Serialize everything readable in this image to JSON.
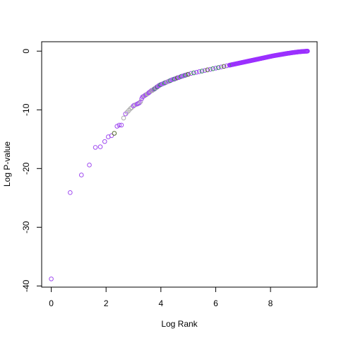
{
  "chart_data": {
    "type": "scatter",
    "title": "",
    "xlabel": "Log Rank",
    "ylabel": "Log P-value",
    "xlim": [
      -0.35,
      9.7
    ],
    "ylim": [
      -40.2,
      1.6
    ],
    "xticks": [
      0,
      2,
      4,
      6,
      8
    ],
    "yticks": [
      0,
      -10,
      -20,
      -30,
      -40
    ],
    "xtick_labels": [
      "0",
      "2",
      "4",
      "6",
      "8"
    ],
    "ytick_labels": [
      "0",
      "-10",
      "-20",
      "-30",
      "-40"
    ],
    "grid": false,
    "legend": "none",
    "marker": "open-circle",
    "colors": {
      "purple": "#a04cf0",
      "violet": "#9b30ff",
      "green": "#2e8b57",
      "darkgreen": "#556b2f",
      "grey": "#aaaaaa",
      "axis": "#000000",
      "background": "#ffffff"
    },
    "points": [
      {
        "x": 0.0,
        "y": -38.8,
        "c": "purple"
      },
      {
        "x": 0.69,
        "y": -24.1,
        "c": "purple"
      },
      {
        "x": 1.1,
        "y": -21.1,
        "c": "purple"
      },
      {
        "x": 1.39,
        "y": -19.4,
        "c": "purple"
      },
      {
        "x": 1.61,
        "y": -16.4,
        "c": "purple"
      },
      {
        "x": 1.79,
        "y": -16.3,
        "c": "purple"
      },
      {
        "x": 1.95,
        "y": -15.4,
        "c": "purple"
      },
      {
        "x": 2.08,
        "y": -14.6,
        "c": "purple"
      },
      {
        "x": 2.2,
        "y": -14.4,
        "c": "purple"
      },
      {
        "x": 2.3,
        "y": -14.0,
        "c": "darkgreen"
      },
      {
        "x": 2.4,
        "y": -12.8,
        "c": "purple"
      },
      {
        "x": 2.48,
        "y": -12.6,
        "c": "purple"
      },
      {
        "x": 2.56,
        "y": -12.6,
        "c": "purple"
      },
      {
        "x": 2.64,
        "y": -11.4,
        "c": "grey"
      },
      {
        "x": 2.71,
        "y": -10.7,
        "c": "purple"
      },
      {
        "x": 2.77,
        "y": -10.4,
        "c": "grey"
      },
      {
        "x": 2.83,
        "y": -10.1,
        "c": "grey"
      },
      {
        "x": 2.89,
        "y": -9.8,
        "c": "grey"
      },
      {
        "x": 2.94,
        "y": -9.6,
        "c": "grey"
      },
      {
        "x": 3.0,
        "y": -9.3,
        "c": "purple"
      },
      {
        "x": 3.04,
        "y": -9.2,
        "c": "purple"
      },
      {
        "x": 3.09,
        "y": -9.1,
        "c": "grey"
      },
      {
        "x": 3.14,
        "y": -9.0,
        "c": "purple"
      },
      {
        "x": 3.18,
        "y": -8.9,
        "c": "purple"
      },
      {
        "x": 3.22,
        "y": -8.8,
        "c": "purple"
      },
      {
        "x": 3.26,
        "y": -8.6,
        "c": "grey"
      },
      {
        "x": 3.3,
        "y": -8.1,
        "c": "purple"
      },
      {
        "x": 3.33,
        "y": -7.8,
        "c": "purple"
      },
      {
        "x": 3.37,
        "y": -7.7,
        "c": "purple"
      },
      {
        "x": 3.4,
        "y": -7.6,
        "c": "grey"
      },
      {
        "x": 3.43,
        "y": -7.5,
        "c": "purple"
      },
      {
        "x": 3.47,
        "y": -7.4,
        "c": "purple"
      },
      {
        "x": 3.5,
        "y": -7.3,
        "c": "grey"
      },
      {
        "x": 3.53,
        "y": -7.2,
        "c": "grey"
      },
      {
        "x": 3.56,
        "y": -7.1,
        "c": "purple"
      },
      {
        "x": 3.58,
        "y": -7.0,
        "c": "purple"
      },
      {
        "x": 3.61,
        "y": -6.9,
        "c": "purple"
      },
      {
        "x": 3.64,
        "y": -6.8,
        "c": "grey"
      },
      {
        "x": 3.66,
        "y": -6.7,
        "c": "purple"
      },
      {
        "x": 3.69,
        "y": -6.7,
        "c": "grey"
      },
      {
        "x": 3.71,
        "y": -6.6,
        "c": "grey"
      },
      {
        "x": 3.74,
        "y": -6.5,
        "c": "purple"
      },
      {
        "x": 3.76,
        "y": -6.4,
        "c": "grey"
      },
      {
        "x": 3.78,
        "y": -6.4,
        "c": "green"
      },
      {
        "x": 3.81,
        "y": -6.3,
        "c": "purple"
      },
      {
        "x": 3.83,
        "y": -6.2,
        "c": "grey"
      },
      {
        "x": 3.85,
        "y": -6.1,
        "c": "purple"
      },
      {
        "x": 3.87,
        "y": -6.1,
        "c": "green"
      },
      {
        "x": 3.89,
        "y": -6.0,
        "c": "purple"
      },
      {
        "x": 3.91,
        "y": -5.9,
        "c": "grey"
      },
      {
        "x": 3.93,
        "y": -5.9,
        "c": "purple"
      },
      {
        "x": 3.95,
        "y": -5.8,
        "c": "purple"
      },
      {
        "x": 4.0,
        "y": -5.7,
        "c": "green"
      },
      {
        "x": 4.05,
        "y": -5.6,
        "c": "purple"
      },
      {
        "x": 4.1,
        "y": -5.5,
        "c": "purple"
      },
      {
        "x": 4.15,
        "y": -5.4,
        "c": "green"
      },
      {
        "x": 4.2,
        "y": -5.3,
        "c": "purple"
      },
      {
        "x": 4.25,
        "y": -5.2,
        "c": "grey"
      },
      {
        "x": 4.3,
        "y": -5.1,
        "c": "purple"
      },
      {
        "x": 4.35,
        "y": -5.0,
        "c": "green"
      },
      {
        "x": 4.4,
        "y": -4.9,
        "c": "purple"
      },
      {
        "x": 4.45,
        "y": -4.8,
        "c": "purple"
      },
      {
        "x": 4.5,
        "y": -4.75,
        "c": "green"
      },
      {
        "x": 4.55,
        "y": -4.65,
        "c": "purple"
      },
      {
        "x": 4.6,
        "y": -4.55,
        "c": "darkgreen"
      },
      {
        "x": 4.65,
        "y": -4.5,
        "c": "purple"
      },
      {
        "x": 4.7,
        "y": -4.4,
        "c": "purple"
      },
      {
        "x": 4.75,
        "y": -4.3,
        "c": "green"
      },
      {
        "x": 4.8,
        "y": -4.25,
        "c": "purple"
      },
      {
        "x": 4.85,
        "y": -4.15,
        "c": "purple"
      },
      {
        "x": 4.9,
        "y": -4.1,
        "c": "green"
      },
      {
        "x": 4.95,
        "y": -4.0,
        "c": "purple"
      },
      {
        "x": 5.0,
        "y": -3.95,
        "c": "darkgreen"
      },
      {
        "x": 5.1,
        "y": -3.8,
        "c": "purple"
      },
      {
        "x": 5.2,
        "y": -3.7,
        "c": "green"
      },
      {
        "x": 5.3,
        "y": -3.6,
        "c": "purple"
      },
      {
        "x": 5.4,
        "y": -3.5,
        "c": "purple"
      },
      {
        "x": 5.5,
        "y": -3.4,
        "c": "green"
      },
      {
        "x": 5.6,
        "y": -3.3,
        "c": "purple"
      },
      {
        "x": 5.7,
        "y": -3.2,
        "c": "darkgreen"
      },
      {
        "x": 5.8,
        "y": -3.1,
        "c": "purple"
      },
      {
        "x": 5.9,
        "y": -3.0,
        "c": "green"
      },
      {
        "x": 6.0,
        "y": -2.9,
        "c": "purple"
      },
      {
        "x": 6.1,
        "y": -2.8,
        "c": "green"
      },
      {
        "x": 6.2,
        "y": -2.7,
        "c": "purple"
      },
      {
        "x": 6.3,
        "y": -2.6,
        "c": "darkgreen"
      },
      {
        "x": 6.4,
        "y": -2.5,
        "c": "purple"
      },
      {
        "x": 6.5,
        "y": -2.4,
        "c": "purple"
      },
      {
        "x": 6.6,
        "y": -2.3,
        "c": "green"
      },
      {
        "x": 6.7,
        "y": -2.2,
        "c": "purple"
      },
      {
        "x": 6.8,
        "y": -2.1,
        "c": "purple"
      },
      {
        "x": 6.9,
        "y": -2.0,
        "c": "purple"
      },
      {
        "x": 7.0,
        "y": -1.9,
        "c": "violet"
      },
      {
        "x": 7.1,
        "y": -1.8,
        "c": "violet"
      },
      {
        "x": 7.2,
        "y": -1.7,
        "c": "violet"
      },
      {
        "x": 7.3,
        "y": -1.6,
        "c": "violet"
      },
      {
        "x": 7.4,
        "y": -1.5,
        "c": "violet"
      },
      {
        "x": 7.5,
        "y": -1.4,
        "c": "violet"
      },
      {
        "x": 7.6,
        "y": -1.3,
        "c": "violet"
      },
      {
        "x": 7.7,
        "y": -1.2,
        "c": "violet"
      },
      {
        "x": 7.8,
        "y": -1.1,
        "c": "violet"
      },
      {
        "x": 7.9,
        "y": -1.0,
        "c": "violet"
      },
      {
        "x": 8.0,
        "y": -0.9,
        "c": "violet"
      },
      {
        "x": 8.1,
        "y": -0.8,
        "c": "violet"
      },
      {
        "x": 8.2,
        "y": -0.72,
        "c": "violet"
      },
      {
        "x": 8.3,
        "y": -0.64,
        "c": "violet"
      },
      {
        "x": 8.4,
        "y": -0.56,
        "c": "violet"
      },
      {
        "x": 8.5,
        "y": -0.48,
        "c": "violet"
      },
      {
        "x": 8.6,
        "y": -0.4,
        "c": "violet"
      },
      {
        "x": 8.7,
        "y": -0.33,
        "c": "violet"
      },
      {
        "x": 8.8,
        "y": -0.26,
        "c": "violet"
      },
      {
        "x": 8.9,
        "y": -0.2,
        "c": "violet"
      },
      {
        "x": 9.0,
        "y": -0.14,
        "c": "violet"
      },
      {
        "x": 9.1,
        "y": -0.09,
        "c": "violet"
      },
      {
        "x": 9.2,
        "y": -0.05,
        "c": "violet"
      },
      {
        "x": 9.3,
        "y": -0.02,
        "c": "violet"
      },
      {
        "x": 9.35,
        "y": 0.0,
        "c": "violet"
      }
    ]
  }
}
